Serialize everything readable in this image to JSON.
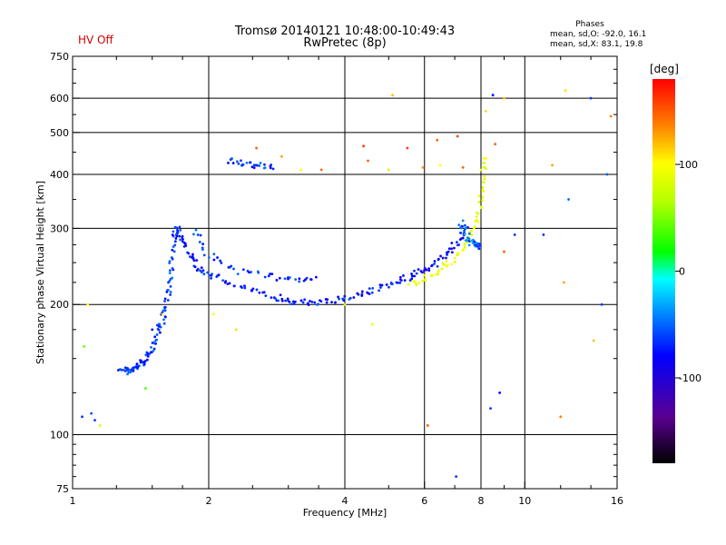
{
  "header": {
    "hv_status": "HV Off",
    "title": "Tromsø 20140121 10:48:00-10:49:43",
    "subtitle": "RwPretec (8p)"
  },
  "phase_stats": {
    "title": "Phases",
    "line_o": "mean, sd,O: -92.0, 16.1",
    "line_x": "mean, sd,X: 83.1, 19.8"
  },
  "colorbar": {
    "label": "[deg]",
    "range": [
      -180,
      180
    ],
    "ticks": [
      {
        "value": 100,
        "label": "100"
      },
      {
        "value": 0,
        "label": "0"
      },
      {
        "value": -100,
        "label": "-100"
      }
    ]
  },
  "chart_data": {
    "type": "scatter",
    "title": "Tromsø 20140121 10:48:00-10:49:43",
    "subtitle": "RwPretec (8p)",
    "xlabel": "Frequency [MHz]",
    "ylabel": "Stationary phase Virtual Height [km]",
    "xscale": "log",
    "yscale": "log",
    "xlim": [
      1,
      16
    ],
    "ylim": [
      75,
      750
    ],
    "xticks": [
      {
        "value": 1,
        "label": "1"
      },
      {
        "value": 2,
        "label": "2"
      },
      {
        "value": 4,
        "label": "4"
      },
      {
        "value": 6,
        "label": "6"
      },
      {
        "value": 8,
        "label": "8"
      },
      {
        "value": 10,
        "label": "10"
      },
      {
        "value": 16,
        "label": "16"
      }
    ],
    "yticks": [
      {
        "value": 75,
        "label": "75"
      },
      {
        "value": 100,
        "label": "100"
      },
      {
        "value": 200,
        "label": "200"
      },
      {
        "value": 300,
        "label": "300"
      },
      {
        "value": 400,
        "label": "400"
      },
      {
        "value": 500,
        "label": "500"
      },
      {
        "value": 600,
        "label": "600"
      },
      {
        "value": 750,
        "label": "750"
      }
    ],
    "grid_x": [
      2,
      4,
      6,
      8,
      10
    ],
    "grid_y": [
      100,
      200,
      300,
      400,
      500,
      600
    ],
    "color_meaning": "phase in degrees",
    "traces": [
      {
        "points": [
          [
            1.28,
            143
          ],
          [
            1.32,
            140
          ],
          [
            1.36,
            141
          ],
          [
            1.4,
            145
          ],
          [
            1.44,
            148
          ],
          [
            1.48,
            155
          ],
          [
            1.52,
            165
          ],
          [
            1.56,
            178
          ],
          [
            1.6,
            190
          ],
          [
            1.62,
            205
          ],
          [
            1.64,
            230
          ],
          [
            1.66,
            260
          ],
          [
            1.68,
            290
          ],
          [
            1.7,
            300
          ]
        ],
        "phase": -100
      },
      {
        "points": [
          [
            1.7,
            300
          ],
          [
            1.75,
            280
          ],
          [
            1.82,
            260
          ],
          [
            1.9,
            245
          ],
          [
            2.0,
            235
          ],
          [
            2.2,
            225
          ],
          [
            2.5,
            215
          ],
          [
            2.8,
            208
          ],
          [
            3.0,
            204
          ],
          [
            3.3,
            202
          ],
          [
            3.6,
            203
          ],
          [
            4.0,
            207
          ],
          [
            4.4,
            212
          ],
          [
            4.8,
            218
          ],
          [
            5.2,
            225
          ]
        ],
        "phase": -105
      },
      {
        "points": [
          [
            1.85,
            300
          ],
          [
            2.0,
            260
          ],
          [
            2.3,
            240
          ],
          [
            2.7,
            232
          ],
          [
            3.1,
            230
          ],
          [
            3.5,
            228
          ]
        ],
        "phase": -100
      },
      {
        "points": [
          [
            5.2,
            225
          ],
          [
            5.6,
            232
          ],
          [
            6.0,
            240
          ],
          [
            6.4,
            250
          ],
          [
            6.8,
            265
          ],
          [
            7.2,
            285
          ],
          [
            7.4,
            305
          ]
        ],
        "phase": -110
      },
      {
        "points": [
          [
            5.6,
            222
          ],
          [
            6.0,
            230
          ],
          [
            6.5,
            240
          ],
          [
            7.0,
            255
          ],
          [
            7.5,
            280
          ],
          [
            7.8,
            310
          ],
          [
            8.0,
            350
          ],
          [
            8.1,
            400
          ],
          [
            8.15,
            440
          ]
        ],
        "phase": 85
      },
      {
        "points": [
          [
            2.2,
            430
          ],
          [
            2.4,
            423
          ],
          [
            2.6,
            418
          ],
          [
            2.8,
            415
          ]
        ],
        "phase": -100
      },
      {
        "points": [
          [
            7.2,
            310
          ],
          [
            7.4,
            290
          ],
          [
            7.6,
            280
          ],
          [
            7.8,
            275
          ],
          [
            8.0,
            270
          ]
        ],
        "phase": -90
      }
    ],
    "scatter_points": [
      [
        1.05,
        110,
        -100
      ],
      [
        1.1,
        112,
        -95
      ],
      [
        1.12,
        108,
        -100
      ],
      [
        1.06,
        160,
        30
      ],
      [
        1.08,
        200,
        100
      ],
      [
        1.15,
        105,
        80
      ],
      [
        1.45,
        128,
        20
      ],
      [
        1.5,
        175,
        -110
      ],
      [
        1.58,
        190,
        100
      ],
      [
        2.05,
        190,
        90
      ],
      [
        2.3,
        175,
        110
      ],
      [
        2.55,
        460,
        150
      ],
      [
        2.9,
        440,
        130
      ],
      [
        3.2,
        410,
        100
      ],
      [
        3.55,
        410,
        150
      ],
      [
        4.4,
        465,
        160
      ],
      [
        4.5,
        430,
        150
      ],
      [
        5.0,
        410,
        110
      ],
      [
        5.1,
        610,
        120
      ],
      [
        5.5,
        460,
        160
      ],
      [
        5.95,
        415,
        130
      ],
      [
        6.4,
        480,
        150
      ],
      [
        6.5,
        420,
        100
      ],
      [
        7.05,
        80,
        -100
      ],
      [
        7.1,
        490,
        160
      ],
      [
        7.3,
        415,
        150
      ],
      [
        8.2,
        560,
        110
      ],
      [
        8.5,
        610,
        -110
      ],
      [
        8.6,
        470,
        150
      ],
      [
        8.4,
        115,
        -100
      ],
      [
        8.8,
        125,
        -110
      ],
      [
        9.0,
        600,
        120
      ],
      [
        9.5,
        290,
        -100
      ],
      [
        11.0,
        290,
        -100
      ],
      [
        11.5,
        420,
        130
      ],
      [
        12.3,
        625,
        110
      ],
      [
        12.5,
        350,
        -90
      ],
      [
        12.0,
        110,
        140
      ],
      [
        12.2,
        225,
        130
      ],
      [
        14.0,
        600,
        -100
      ],
      [
        14.2,
        165,
        120
      ],
      [
        14.8,
        200,
        -100
      ],
      [
        15.5,
        545,
        140
      ],
      [
        15.2,
        400,
        -90
      ],
      [
        6.1,
        105,
        150
      ],
      [
        4.0,
        200,
        80
      ],
      [
        4.6,
        180,
        90
      ],
      [
        9.0,
        265,
        150
      ]
    ]
  }
}
